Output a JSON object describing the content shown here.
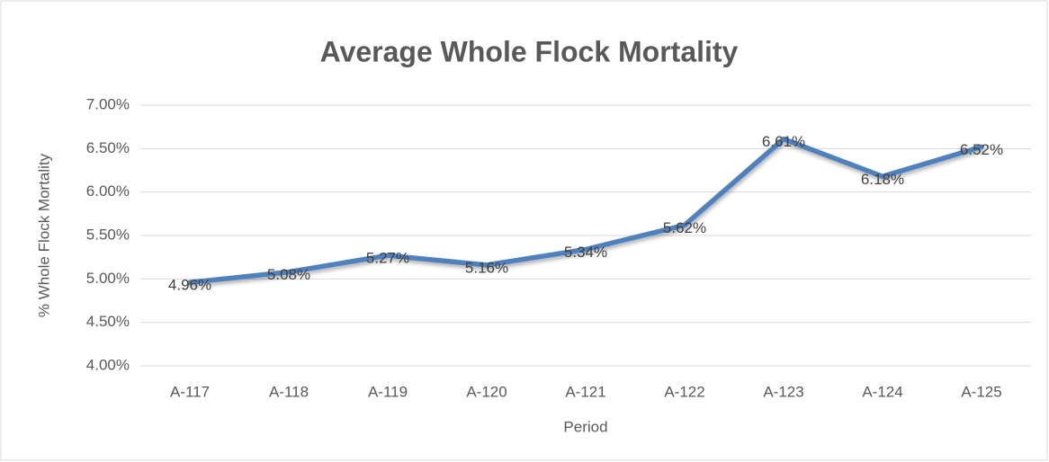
{
  "chart_data": {
    "type": "line",
    "title": "Average Whole Flock Mortality",
    "x_label": "Period",
    "y_label": "% Whole Flock Mortality",
    "categories": [
      "A-117",
      "A-118",
      "A-119",
      "A-120",
      "A-121",
      "A-122",
      "A-123",
      "A-124",
      "A-125"
    ],
    "series": [
      {
        "name": "Average Whole Flock Mortality",
        "color": "#4f81bd",
        "values": [
          4.96,
          5.08,
          5.27,
          5.16,
          5.34,
          5.62,
          6.61,
          6.18,
          6.52
        ],
        "value_labels": [
          "4.96%",
          "5.08%",
          "5.27%",
          "5.16%",
          "5.34%",
          "5.62%",
          "6.61%",
          "6.18%",
          "6.52%"
        ]
      }
    ],
    "ylim": [
      4,
      7
    ],
    "yticks": [
      {
        "value": 4,
        "label": "4.00%"
      },
      {
        "value": 4.5,
        "label": "4.50%"
      },
      {
        "value": 5,
        "label": "5.00%"
      },
      {
        "value": 5.5,
        "label": "5.50%"
      },
      {
        "value": 6,
        "label": "6.00%"
      },
      {
        "value": 6.5,
        "label": "6.50%"
      },
      {
        "value": 7,
        "label": "7.00%"
      }
    ],
    "grid": true
  }
}
